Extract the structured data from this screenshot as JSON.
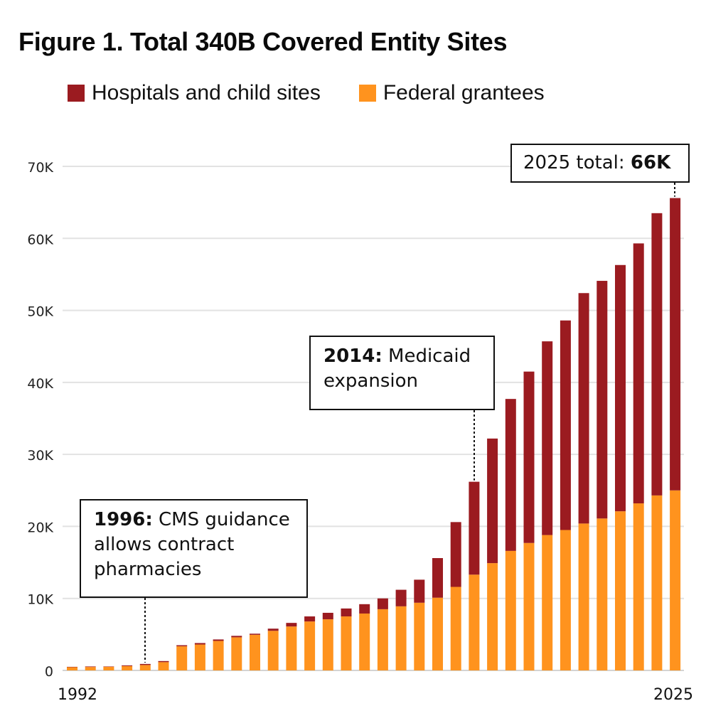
{
  "chart_data": {
    "type": "bar",
    "stacked": true,
    "title": "Figure 1. Total 340B Covered Entity Sites",
    "xlabel": "",
    "ylabel": "",
    "ylim": [
      0,
      70000
    ],
    "yticks": [
      0,
      10000,
      20000,
      30000,
      40000,
      50000,
      60000,
      70000
    ],
    "ytick_labels": [
      "0",
      "10K",
      "20K",
      "30K",
      "40K",
      "50K",
      "60K",
      "70K"
    ],
    "xtick_labels_shown": [
      "1992",
      "2025"
    ],
    "grid": true,
    "legend_position": "top",
    "categories": [
      "1992",
      "1993",
      "1994",
      "1995",
      "1996",
      "1997",
      "1998",
      "1999",
      "2000",
      "2001",
      "2002",
      "2003",
      "2004",
      "2005",
      "2006",
      "2007",
      "2008",
      "2009",
      "2010",
      "2011",
      "2012",
      "2013",
      "2014",
      "2015",
      "2016",
      "2017",
      "2018",
      "2019",
      "2020",
      "2021",
      "2022",
      "2023",
      "2024",
      "2025"
    ],
    "series": [
      {
        "name": "Federal grantees",
        "color": "#FF931E",
        "values": [
          450,
          480,
          500,
          600,
          750,
          1150,
          3350,
          3600,
          4100,
          4600,
          4950,
          5500,
          6100,
          6800,
          7100,
          7500,
          7900,
          8500,
          8900,
          9400,
          10100,
          11600,
          13300,
          14900,
          16600,
          17700,
          18800,
          19500,
          20400,
          21100,
          22100,
          23200,
          24300,
          25000
        ]
      },
      {
        "name": "Hospitals and child sites",
        "color": "#9B1B20",
        "values": [
          50,
          70,
          50,
          100,
          150,
          150,
          150,
          200,
          200,
          200,
          150,
          300,
          500,
          700,
          900,
          1100,
          1300,
          1500,
          2300,
          3200,
          5500,
          9000,
          12900,
          17300,
          21100,
          23800,
          26900,
          29100,
          32000,
          33000,
          34200,
          36100,
          39200,
          40600
        ]
      }
    ],
    "annotations": [
      {
        "year": "1996",
        "bold": "1996:",
        "text": " CMS guidance allows contract pharmacies"
      },
      {
        "year": "2014",
        "bold": "2014:",
        "text": " Medicaid expansion"
      },
      {
        "year": "2025",
        "prefix": "2025 total: ",
        "bold": "66K"
      }
    ]
  },
  "legend": {
    "items": [
      {
        "label": "Hospitals and child sites",
        "color": "#9B1B20"
      },
      {
        "label": "Federal grantees",
        "color": "#FF931E"
      }
    ]
  }
}
